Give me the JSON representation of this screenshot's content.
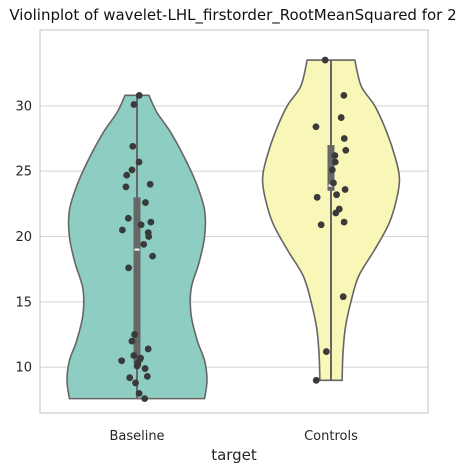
{
  "chart_data": {
    "type": "violin",
    "title": "Violinplot of wavelet-LHL_firstorder_RootMeanSquared for 2",
    "xlabel": "target",
    "ylabel": "",
    "categories": [
      "Baseline",
      "Controls"
    ],
    "ylim": [
      6.5,
      35.8
    ],
    "yticks": [
      10,
      15,
      20,
      25,
      30
    ],
    "grid": true,
    "colors": {
      "Baseline": "#8ecdc1",
      "Controls": "#f8f7b7",
      "outline": "#666666",
      "points": "#3a3a3a",
      "box": "#666666"
    },
    "groups": [
      {
        "category": "Baseline",
        "min": 7.6,
        "max": 30.8,
        "q1": 10.3,
        "median": 19.0,
        "q3": 23.0,
        "density_profile": [
          [
            7.6,
            0.85
          ],
          [
            9.0,
            0.88
          ],
          [
            10.5,
            0.85
          ],
          [
            12.0,
            0.76
          ],
          [
            14.0,
            0.68
          ],
          [
            16.0,
            0.68
          ],
          [
            18.0,
            0.78
          ],
          [
            20.0,
            0.85
          ],
          [
            22.0,
            0.85
          ],
          [
            24.0,
            0.75
          ],
          [
            26.0,
            0.6
          ],
          [
            28.0,
            0.42
          ],
          [
            29.5,
            0.25
          ],
          [
            30.8,
            0.15
          ]
        ],
        "points": [
          7.6,
          8.0,
          8.8,
          9.2,
          9.3,
          9.9,
          10.1,
          10.2,
          10.3,
          10.5,
          10.6,
          10.7,
          10.9,
          11.4,
          12.0,
          12.5,
          17.6,
          18.5,
          19.4,
          20.0,
          20.3,
          20.5,
          20.9,
          21.1,
          21.4,
          22.6,
          23.8,
          24.0,
          24.7,
          25.1,
          25.7,
          26.9,
          30.1,
          30.8
        ]
      },
      {
        "category": "Controls",
        "min": 9.0,
        "max": 33.5,
        "q1": 23.5,
        "median": 23.9,
        "q3": 27.0,
        "density_profile": [
          [
            9.0,
            0.14
          ],
          [
            11.0,
            0.15
          ],
          [
            13.0,
            0.18
          ],
          [
            15.0,
            0.25
          ],
          [
            17.0,
            0.35
          ],
          [
            19.0,
            0.55
          ],
          [
            21.0,
            0.73
          ],
          [
            23.0,
            0.83
          ],
          [
            24.5,
            0.86
          ],
          [
            26.0,
            0.81
          ],
          [
            28.0,
            0.7
          ],
          [
            30.0,
            0.55
          ],
          [
            31.5,
            0.38
          ],
          [
            33.5,
            0.3
          ]
        ],
        "points": [
          9.0,
          11.2,
          15.4,
          20.9,
          21.1,
          21.8,
          22.1,
          23.0,
          23.2,
          23.6,
          24.1,
          25.1,
          25.7,
          26.2,
          26.6,
          27.5,
          28.4,
          29.1,
          30.8,
          33.5
        ]
      }
    ]
  }
}
